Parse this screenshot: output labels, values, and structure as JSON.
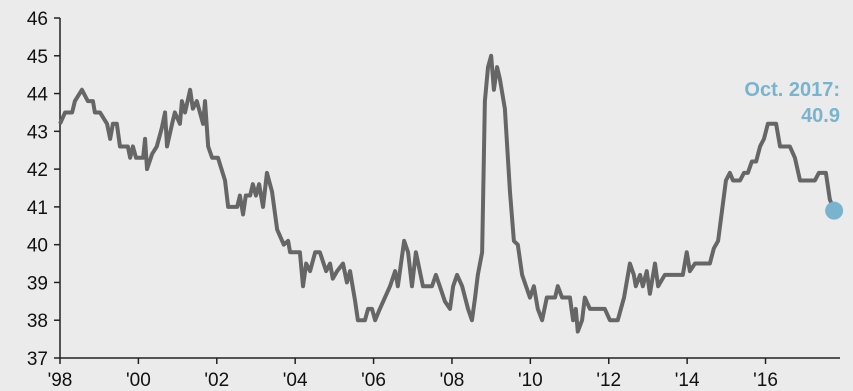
{
  "chart_data": {
    "type": "line",
    "annotation": "Oct. 2017:",
    "xlim": [
      1998,
      2017.9
    ],
    "ylim": [
      37,
      46
    ],
    "yticks": [
      37,
      38,
      39,
      40,
      41,
      42,
      43,
      44,
      45,
      46
    ],
    "xticks": [
      {
        "value": 1998,
        "label": "'98"
      },
      {
        "value": 2000,
        "label": "'00"
      },
      {
        "value": 2002,
        "label": "'02"
      },
      {
        "value": 2004,
        "label": "'04"
      },
      {
        "value": 2006,
        "label": "'06"
      },
      {
        "value": 2008,
        "label": "'08"
      },
      {
        "value": 2010,
        "label": "'10"
      },
      {
        "value": 2012,
        "label": "'12"
      },
      {
        "value": 2014,
        "label": "'14"
      },
      {
        "value": 2016,
        "label": "'16"
      }
    ],
    "x": [
      1998.0,
      1998.13,
      1998.31,
      1998.38,
      1998.56,
      1998.71,
      1998.84,
      1998.89,
      1999.02,
      1999.2,
      1999.28,
      1999.35,
      1999.45,
      1999.53,
      1999.73,
      1999.79,
      1999.86,
      1999.94,
      2000.12,
      2000.17,
      2000.22,
      2000.35,
      2000.47,
      2000.6,
      2000.68,
      2000.73,
      2000.86,
      2000.93,
      2001.06,
      2001.11,
      2001.19,
      2001.32,
      2001.39,
      2001.49,
      2001.65,
      2001.7,
      2001.78,
      2001.88,
      2002.03,
      2002.21,
      2002.29,
      2002.52,
      2002.59,
      2002.67,
      2002.74,
      2002.85,
      2002.92,
      2003.0,
      2003.08,
      2003.18,
      2003.28,
      2003.41,
      2003.54,
      2003.71,
      2003.82,
      2003.87,
      2004.12,
      2004.2,
      2004.28,
      2004.38,
      2004.51,
      2004.63,
      2004.79,
      2004.89,
      2004.96,
      2005.07,
      2005.22,
      2005.32,
      2005.4,
      2005.53,
      2005.6,
      2005.78,
      2005.86,
      2005.96,
      2006.04,
      2006.16,
      2006.29,
      2006.42,
      2006.55,
      2006.62,
      2006.78,
      2006.88,
      2006.98,
      2007.08,
      2007.18,
      2007.26,
      2007.49,
      2007.59,
      2007.69,
      2007.82,
      2007.95,
      2008.03,
      2008.13,
      2008.26,
      2008.41,
      2008.51,
      2008.59,
      2008.66,
      2008.77,
      2008.84,
      2008.92,
      2009.0,
      2009.07,
      2009.15,
      2009.22,
      2009.35,
      2009.48,
      2009.58,
      2009.68,
      2009.79,
      2009.89,
      2009.99,
      2010.09,
      2010.19,
      2010.3,
      2010.42,
      2010.63,
      2010.7,
      2010.81,
      2011.01,
      2011.09,
      2011.16,
      2011.21,
      2011.32,
      2011.39,
      2011.52,
      2011.9,
      2012.03,
      2012.23,
      2012.39,
      2012.49,
      2012.54,
      2012.64,
      2012.69,
      2012.8,
      2012.87,
      2012.97,
      2013.05,
      2013.18,
      2013.26,
      2013.43,
      2013.89,
      2013.99,
      2014.07,
      2014.2,
      2014.58,
      2014.68,
      2014.79,
      2014.89,
      2014.99,
      2015.09,
      2015.17,
      2015.35,
      2015.45,
      2015.55,
      2015.65,
      2015.76,
      2015.86,
      2015.96,
      2016.06,
      2016.27,
      2016.37,
      2016.62,
      2016.75,
      2016.88,
      2017.26,
      2017.36,
      2017.54,
      2017.64,
      2017.75
    ],
    "series": [
      {
        "color": "#666666",
        "values": [
          43.2,
          43.5,
          43.5,
          43.8,
          44.1,
          43.8,
          43.8,
          43.5,
          43.5,
          43.2,
          42.8,
          43.2,
          43.2,
          42.6,
          42.6,
          42.3,
          42.6,
          42.3,
          42.3,
          42.8,
          42.0,
          42.4,
          42.6,
          43.1,
          43.5,
          42.6,
          43.2,
          43.5,
          43.2,
          43.8,
          43.5,
          44.1,
          43.6,
          43.8,
          43.2,
          43.8,
          42.6,
          42.3,
          42.3,
          41.7,
          41.0,
          41.0,
          41.3,
          40.8,
          41.3,
          41.3,
          41.6,
          41.3,
          41.6,
          41.0,
          41.9,
          41.4,
          40.4,
          40.0,
          40.1,
          39.8,
          39.8,
          38.9,
          39.5,
          39.3,
          39.8,
          39.8,
          39.3,
          39.5,
          39.1,
          39.3,
          39.5,
          39.0,
          39.3,
          38.5,
          38.0,
          38.0,
          38.3,
          38.3,
          38.0,
          38.3,
          38.6,
          38.9,
          39.3,
          38.9,
          40.1,
          39.8,
          38.9,
          39.8,
          39.3,
          38.9,
          38.9,
          39.2,
          38.9,
          38.5,
          38.3,
          38.9,
          39.2,
          38.9,
          38.3,
          38.0,
          38.6,
          39.2,
          39.8,
          43.8,
          44.7,
          45.0,
          44.1,
          44.7,
          44.4,
          43.6,
          41.4,
          40.1,
          40.0,
          39.2,
          38.9,
          38.6,
          38.9,
          38.3,
          38.0,
          38.6,
          38.6,
          38.9,
          38.6,
          38.6,
          38.0,
          38.3,
          37.7,
          38.0,
          38.6,
          38.3,
          38.3,
          38.0,
          38.0,
          38.6,
          39.2,
          39.5,
          39.2,
          38.9,
          39.2,
          38.9,
          39.3,
          38.7,
          39.5,
          38.9,
          39.2,
          39.2,
          39.8,
          39.3,
          39.5,
          39.5,
          39.9,
          40.1,
          40.9,
          41.7,
          41.9,
          41.7,
          41.7,
          41.9,
          41.9,
          42.2,
          42.2,
          42.6,
          42.8,
          43.2,
          43.2,
          42.6,
          42.6,
          42.3,
          41.7,
          41.7,
          41.9,
          41.9,
          41.2,
          40.9
        ]
      }
    ],
    "marker_color": "#79b4cf"
  }
}
